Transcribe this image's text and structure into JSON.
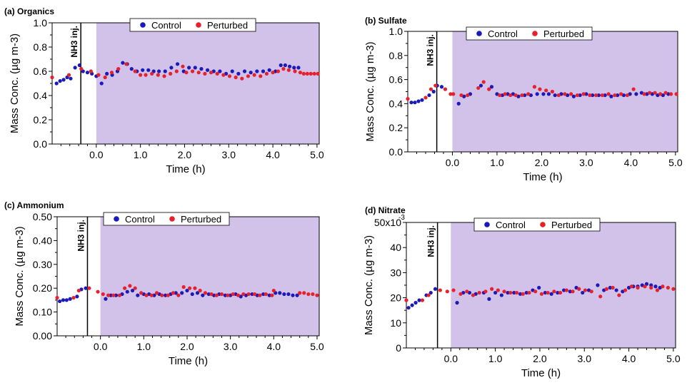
{
  "colors": {
    "control": "#1a1ab8",
    "perturbed": "#e8202a",
    "shade": "#d2c2ea"
  },
  "legend": {
    "control": "Control",
    "perturbed": "Perturbed"
  },
  "injection_label": "NH3 inj.",
  "chart_data": [
    {
      "type": "scatter",
      "title": "(a) Organics",
      "xlabel": "Time (h)",
      "ylabel": "Mass Conc. (µg m-3)",
      "xlim": [
        -1.0,
        5.05
      ],
      "ylim": [
        0.0,
        1.0
      ],
      "xticks": [
        0.0,
        1.0,
        2.0,
        3.0,
        4.0,
        5.0
      ],
      "xtick_labels": [
        "0.0",
        "1.0",
        "2.0",
        "3.0",
        "4.0",
        "5.0"
      ],
      "yticks": [
        0.0,
        0.2,
        0.4,
        0.6,
        0.8,
        1.0
      ],
      "ytick_labels": [
        "0.0",
        "0.2",
        "0.4",
        "0.6",
        "0.8",
        "1.0"
      ],
      "injection_time": -0.35,
      "shade_start": 0.0,
      "series": [
        {
          "name": "Control",
          "x": [
            -0.9,
            -0.82,
            -0.74,
            -0.66,
            -0.58,
            -0.48,
            -0.38,
            -0.3,
            -0.2,
            -0.1,
            0.0,
            0.12,
            0.24,
            0.36,
            0.48,
            0.6,
            0.7,
            0.8,
            0.92,
            1.05,
            1.18,
            1.3,
            1.42,
            1.56,
            1.7,
            1.84,
            1.98,
            2.1,
            2.24,
            2.38,
            2.52,
            2.66,
            2.8,
            2.94,
            3.08,
            3.22,
            3.36,
            3.5,
            3.64,
            3.78,
            3.92,
            4.06,
            4.18,
            4.28,
            4.38,
            4.48,
            4.58
          ],
          "y": [
            0.5,
            0.52,
            0.53,
            0.55,
            0.54,
            0.63,
            0.65,
            0.6,
            0.59,
            0.58,
            0.56,
            0.5,
            0.58,
            0.57,
            0.6,
            0.67,
            0.66,
            0.62,
            0.6,
            0.61,
            0.61,
            0.6,
            0.6,
            0.6,
            0.63,
            0.66,
            0.6,
            0.63,
            0.63,
            0.62,
            0.61,
            0.6,
            0.6,
            0.58,
            0.6,
            0.58,
            0.6,
            0.59,
            0.6,
            0.6,
            0.61,
            0.6,
            0.65,
            0.65,
            0.64,
            0.63,
            0.63
          ]
        },
        {
          "name": "Perturbed",
          "x": [
            -1.0,
            -0.62,
            -0.34,
            -0.12,
            0.05,
            0.2,
            0.35,
            0.5,
            0.68,
            0.88,
            1.0,
            1.12,
            1.26,
            1.4,
            1.54,
            1.68,
            1.82,
            1.96,
            2.04,
            2.18,
            2.32,
            2.46,
            2.6,
            2.74,
            2.88,
            3.02,
            3.16,
            3.3,
            3.44,
            3.58,
            3.72,
            3.86,
            4.0,
            4.12,
            4.24,
            4.36,
            4.5,
            4.62,
            4.7,
            4.78,
            4.86,
            4.94,
            5.02
          ],
          "y": [
            0.55,
            0.57,
            0.62,
            0.6,
            0.57,
            0.55,
            0.59,
            0.62,
            0.66,
            0.6,
            0.57,
            0.57,
            0.58,
            0.57,
            0.56,
            0.58,
            0.6,
            0.64,
            0.59,
            0.6,
            0.59,
            0.58,
            0.59,
            0.58,
            0.57,
            0.56,
            0.55,
            0.54,
            0.56,
            0.57,
            0.56,
            0.58,
            0.59,
            0.6,
            0.62,
            0.61,
            0.6,
            0.59,
            0.58,
            0.58,
            0.58,
            0.58,
            0.58
          ]
        }
      ]
    },
    {
      "type": "scatter",
      "title": "(b) Sulfate",
      "xlabel": "Time (h)",
      "ylabel": "Mass Conc. (µg m-3)",
      "xlim": [
        -1.0,
        5.05
      ],
      "ylim": [
        0.0,
        1.0
      ],
      "xticks": [
        0.0,
        1.0,
        2.0,
        3.0,
        4.0,
        5.0
      ],
      "xtick_labels": [
        "0.0",
        "1.0",
        "2.0",
        "3.0",
        "4.0",
        "5.0"
      ],
      "yticks": [
        0.0,
        0.2,
        0.4,
        0.6,
        0.8,
        1.0
      ],
      "ytick_labels": [
        "0.0",
        "0.2",
        "0.4",
        "0.6",
        "0.8",
        "1.0"
      ],
      "injection_time": -0.35,
      "shade_start": 0.0,
      "series": [
        {
          "name": "Control",
          "x": [
            -0.92,
            -0.84,
            -0.76,
            -0.68,
            -0.52,
            -0.42,
            -0.34,
            -0.24,
            0.14,
            0.26,
            0.4,
            0.64,
            0.88,
            1.0,
            1.12,
            1.24,
            1.36,
            1.48,
            1.62,
            1.76,
            1.9,
            2.04,
            2.16,
            2.3,
            2.44,
            2.58,
            2.72,
            2.86,
            3.0,
            3.14,
            3.28,
            3.42,
            3.56,
            3.7,
            3.84,
            3.98,
            4.12,
            4.24,
            4.36,
            4.48,
            4.6,
            4.72,
            4.84
          ],
          "y": [
            0.41,
            0.41,
            0.42,
            0.43,
            0.47,
            0.5,
            0.55,
            0.54,
            0.4,
            0.46,
            0.48,
            0.55,
            0.54,
            0.48,
            0.47,
            0.48,
            0.48,
            0.46,
            0.47,
            0.47,
            0.48,
            0.48,
            0.48,
            0.47,
            0.48,
            0.47,
            0.46,
            0.47,
            0.48,
            0.47,
            0.47,
            0.47,
            0.46,
            0.47,
            0.47,
            0.48,
            0.48,
            0.49,
            0.48,
            0.48,
            0.47,
            0.47,
            0.48
          ]
        },
        {
          "name": "Perturbed",
          "x": [
            -1.0,
            -0.6,
            -0.48,
            -0.38,
            -0.16,
            -0.04,
            0.02,
            0.2,
            0.34,
            0.58,
            0.7,
            0.82,
            1.06,
            1.18,
            1.3,
            1.42,
            1.56,
            1.7,
            1.84,
            1.96,
            2.1,
            2.24,
            2.38,
            2.52,
            2.66,
            2.8,
            2.94,
            3.08,
            3.22,
            3.36,
            3.5,
            3.64,
            3.78,
            3.92,
            4.06,
            4.3,
            4.42,
            4.54,
            4.66,
            4.78,
            4.9,
            5.02
          ],
          "y": [
            0.44,
            0.45,
            0.52,
            0.55,
            0.52,
            0.48,
            0.48,
            0.47,
            0.47,
            0.53,
            0.58,
            0.52,
            0.47,
            0.48,
            0.47,
            0.47,
            0.47,
            0.48,
            0.54,
            0.52,
            0.51,
            0.5,
            0.47,
            0.48,
            0.48,
            0.47,
            0.48,
            0.47,
            0.47,
            0.47,
            0.48,
            0.47,
            0.48,
            0.47,
            0.52,
            0.48,
            0.49,
            0.49,
            0.48,
            0.49,
            0.48,
            0.48
          ]
        }
      ]
    },
    {
      "type": "scatter",
      "title": "(c) Ammonium",
      "xlabel": "Time (h)",
      "ylabel": "Mass Conc. (µg m-3)",
      "xlim": [
        -1.0,
        5.05
      ],
      "ylim": [
        0.0,
        0.5
      ],
      "xticks": [
        0.0,
        1.0,
        2.0,
        3.0,
        4.0,
        5.0
      ],
      "xtick_labels": [
        "0.0",
        "1.0",
        "2.0",
        "3.0",
        "4.0",
        "5.0"
      ],
      "yticks": [
        0.0,
        0.1,
        0.2,
        0.3,
        0.4,
        0.5
      ],
      "ytick_labels": [
        "0.00",
        "0.10",
        "0.20",
        "0.30",
        "0.40",
        "0.50"
      ],
      "injection_time": -0.3,
      "shade_start": 0.0,
      "series": [
        {
          "name": "Control",
          "x": [
            -0.94,
            -0.86,
            -0.78,
            -0.7,
            -0.54,
            -0.44,
            -0.34,
            0.12,
            0.24,
            0.36,
            0.5,
            0.62,
            0.74,
            0.86,
            1.0,
            1.12,
            1.24,
            1.36,
            1.5,
            1.62,
            1.74,
            1.88,
            2.0,
            2.12,
            2.24,
            2.36,
            2.5,
            2.62,
            2.74,
            2.88,
            3.0,
            3.12,
            3.24,
            3.36,
            3.5,
            3.62,
            3.76,
            3.9,
            4.04,
            4.14,
            4.24,
            4.34,
            4.44,
            4.54
          ],
          "y": [
            0.145,
            0.15,
            0.15,
            0.155,
            0.165,
            0.195,
            0.2,
            0.155,
            0.17,
            0.17,
            0.175,
            0.185,
            0.19,
            0.17,
            0.175,
            0.175,
            0.17,
            0.175,
            0.17,
            0.175,
            0.18,
            0.18,
            0.19,
            0.175,
            0.18,
            0.17,
            0.175,
            0.17,
            0.175,
            0.17,
            0.17,
            0.175,
            0.165,
            0.17,
            0.175,
            0.17,
            0.175,
            0.17,
            0.18,
            0.18,
            0.175,
            0.175,
            0.17,
            0.17
          ]
        },
        {
          "name": "Perturbed",
          "x": [
            -1.0,
            -0.62,
            -0.5,
            -0.26,
            -0.06,
            0.06,
            0.18,
            0.3,
            0.44,
            0.56,
            0.68,
            0.8,
            0.94,
            1.06,
            1.18,
            1.3,
            1.42,
            1.56,
            1.68,
            1.8,
            1.92,
            2.06,
            2.18,
            2.3,
            2.42,
            2.56,
            2.68,
            2.8,
            2.94,
            3.06,
            3.18,
            3.3,
            3.42,
            3.56,
            3.68,
            3.82,
            3.96,
            4.0,
            4.6,
            4.7,
            4.8,
            4.9,
            5.0
          ],
          "y": [
            0.16,
            0.16,
            0.19,
            0.2,
            0.185,
            0.175,
            0.17,
            0.17,
            0.17,
            0.2,
            0.21,
            0.2,
            0.18,
            0.17,
            0.17,
            0.18,
            0.17,
            0.17,
            0.18,
            0.17,
            0.205,
            0.2,
            0.2,
            0.19,
            0.18,
            0.175,
            0.17,
            0.175,
            0.17,
            0.175,
            0.17,
            0.175,
            0.175,
            0.175,
            0.17,
            0.175,
            0.17,
            0.19,
            0.18,
            0.18,
            0.175,
            0.175,
            0.17
          ]
        }
      ]
    },
    {
      "type": "scatter",
      "title": "(d) Nitrate",
      "xlabel": "Time (h)",
      "ylabel": "Mass Conc. (µg m-3)",
      "xlim": [
        -1.0,
        5.05
      ],
      "ylim": [
        0,
        50
      ],
      "xticks": [
        0.0,
        1.0,
        2.0,
        3.0,
        4.0,
        5.0
      ],
      "xtick_labels": [
        "0.0",
        "1.0",
        "2.0",
        "3.0",
        "4.0",
        "5.0"
      ],
      "yticks": [
        0,
        10,
        20,
        30,
        40,
        50
      ],
      "ytick_labels": [
        "0",
        "10",
        "20",
        "30",
        "40",
        "50x10"
      ],
      "y_exponent": "-3",
      "injection_time": -0.3,
      "shade_start": 0.0,
      "series": [
        {
          "name": "Control",
          "x": [
            -0.95,
            -0.87,
            -0.79,
            -0.71,
            -0.55,
            -0.45,
            -0.35,
            0.14,
            0.28,
            0.42,
            0.56,
            0.74,
            0.86,
            1.0,
            1.14,
            1.28,
            1.42,
            1.56,
            1.7,
            1.84,
            1.98,
            2.12,
            2.26,
            2.4,
            2.54,
            2.68,
            2.82,
            2.96,
            3.1,
            3.3,
            3.44,
            3.58,
            3.72,
            3.86,
            4.0,
            4.1,
            4.2,
            4.3,
            4.4,
            4.5,
            4.6,
            4.7
          ],
          "y": [
            16,
            17,
            18,
            19,
            21,
            22,
            23.5,
            18,
            22,
            22,
            21.5,
            22,
            19.5,
            22,
            21,
            22,
            22,
            21.5,
            22,
            23,
            24,
            22,
            21.5,
            22,
            23,
            22.5,
            24,
            22,
            23,
            25,
            23,
            24,
            23,
            22.5,
            24,
            24.5,
            24.5,
            25,
            25.5,
            25,
            24.5,
            24
          ]
        },
        {
          "name": "Perturbed",
          "x": [
            -1.0,
            -0.64,
            -0.5,
            -0.24,
            -0.08,
            0.06,
            0.22,
            0.36,
            0.5,
            0.64,
            0.78,
            0.92,
            1.06,
            1.2,
            1.34,
            1.48,
            1.62,
            1.76,
            1.9,
            2.04,
            2.18,
            2.32,
            2.46,
            2.6,
            2.74,
            2.88,
            3.02,
            3.16,
            3.36,
            3.5,
            3.64,
            3.78,
            3.92,
            4.06,
            4.2,
            4.36,
            4.5,
            4.64,
            4.76,
            4.88,
            5.0
          ],
          "y": [
            19,
            19,
            21,
            23,
            22.5,
            23,
            21.5,
            22.5,
            21,
            22,
            22.5,
            23.5,
            23,
            22.5,
            22,
            22,
            21.5,
            22,
            22.5,
            21.5,
            22,
            22.5,
            22,
            23,
            22.5,
            23.5,
            23,
            22.5,
            20.5,
            23.5,
            24,
            21,
            23,
            24.5,
            24,
            24.5,
            24,
            23,
            24.5,
            24,
            23.5
          ]
        }
      ]
    }
  ]
}
